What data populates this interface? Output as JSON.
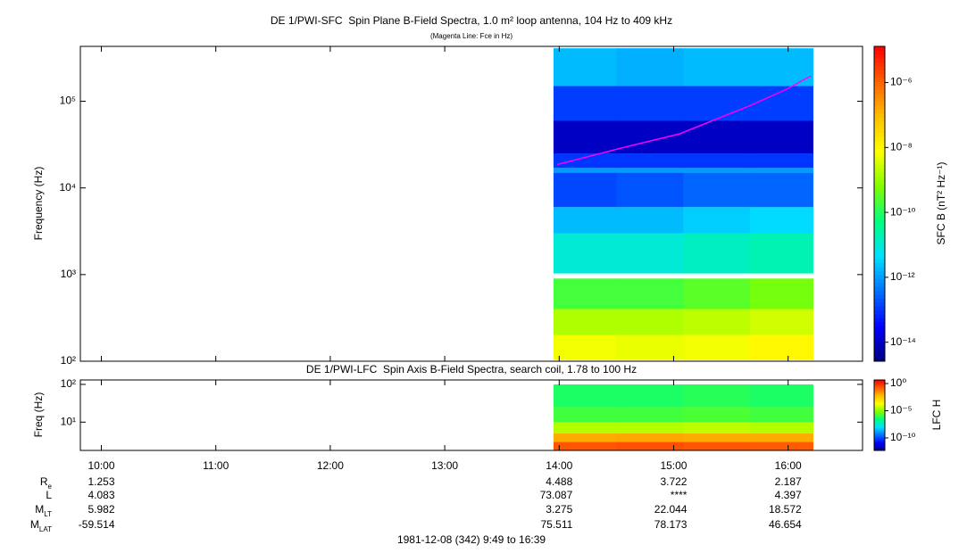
{
  "chart_data": {
    "type": "heatmap",
    "xlim": [
      589,
      999
    ],
    "xticks": [
      {
        "value": 600,
        "label": "10:00"
      },
      {
        "value": 660,
        "label": "11:00"
      },
      {
        "value": 720,
        "label": "12:00"
      },
      {
        "value": 780,
        "label": "13:00"
      },
      {
        "value": 840,
        "label": "14:00"
      },
      {
        "value": 900,
        "label": "15:00"
      },
      {
        "value": 960,
        "label": "16:00"
      }
    ],
    "panels": [
      {
        "title": "DE 1/PWI-SFC  Spin Plane B-Field Spectra, 1.0 m² loop antenna, 104 Hz to 409 kHz",
        "subtitle": "(Magenta Line: Fce in Hz)",
        "ylabel": "Frequency (Hz)",
        "log": true,
        "ylim": [
          100,
          430000
        ],
        "yticks": [
          {
            "value": 100,
            "label": "10²"
          },
          {
            "value": 1000,
            "label": "10³"
          },
          {
            "value": 10000,
            "label": "10⁴"
          },
          {
            "value": 100000,
            "label": "10⁵"
          }
        ],
        "x_edges": [
          837,
          870,
          905,
          940,
          973
        ],
        "y_edges": [
          104,
          200,
          400,
          900,
          1030,
          3000,
          6000,
          15000,
          17000,
          25000,
          60000,
          150000,
          409000
        ],
        "z": [
          [
            6e-09,
            5e-09,
            6e-09,
            1e-08
          ],
          [
            1.6e-09,
            1.6e-09,
            2e-09,
            3e-09
          ],
          [
            2e-10,
            2e-10,
            3e-10,
            5e-10
          ],
          [
            null,
            null,
            null,
            null
          ],
          [
            1e-11,
            1e-11,
            1.5e-11,
            2e-11
          ],
          [
            2e-12,
            2e-12,
            3e-12,
            4e-12
          ],
          [
            1.5e-13,
            2e-13,
            3e-13,
            3e-13
          ],
          [
            1e-12,
            1e-12,
            1e-12,
            1e-12
          ],
          [
            1e-13,
            1e-13,
            1e-13,
            1e-13
          ],
          [
            1e-14,
            1e-14,
            1e-14,
            1e-14
          ],
          [
            1.2e-13,
            1.2e-13,
            1.2e-13,
            1.2e-13
          ],
          [
            2e-12,
            1.5e-12,
            2e-12,
            2e-12
          ]
        ],
        "colorbar": {
          "label": "SFC B (nT² Hz⁻¹)",
          "log": true,
          "lim": [
            2.6e-15,
            1.3e-05
          ],
          "ticks": [
            {
              "value": 1e-14,
              "label": "10⁻¹⁴"
            },
            {
              "value": 1e-12,
              "label": "10⁻¹²"
            },
            {
              "value": 1e-10,
              "label": "10⁻¹⁰"
            },
            {
              "value": 1e-08,
              "label": "10⁻⁸"
            },
            {
              "value": 1e-06,
              "label": "10⁻⁶"
            }
          ],
          "colors": [
            "#000080",
            "#0000ff",
            "#0070ff",
            "#00e0ff",
            "#00ff80",
            "#80ff00",
            "#ffff00",
            "#ffc000",
            "#ff6000",
            "#ff0000"
          ]
        },
        "line": {
          "color": "#ff00ff",
          "x": [
            839,
            874,
            903,
            940,
            959,
            972
          ],
          "values": [
            18600,
            29400,
            42000,
            89000,
            137000,
            196000
          ]
        }
      },
      {
        "title": "DE 1/PWI-LFC  Spin Axis B-Field Spectra, search coil, 1.78 to 100 Hz",
        "ylabel": "Freq (Hz)",
        "log": true,
        "ylim": [
          1.78,
          131
        ],
        "yticks": [
          {
            "value": 10,
            "label": "10¹"
          },
          {
            "value": 100,
            "label": "10²"
          }
        ],
        "x_edges": [
          837,
          870,
          905,
          940,
          973
        ],
        "y_edges": [
          1.78,
          3,
          5,
          10,
          25,
          100
        ],
        "z": [
          [
            0.23,
            0.3,
            0.23,
            0.2
          ],
          [
            0.012,
            0.015,
            0.012,
            0.012
          ],
          [
            3e-05,
            3e-05,
            4e-05,
            3e-05
          ],
          [
            1.6e-06,
            1.6e-06,
            2e-06,
            1.6e-06
          ],
          [
            6e-07,
            6e-07,
            8e-07,
            6e-07
          ]
        ],
        "colorbar": {
          "label": "LFC H",
          "log": true,
          "lim": [
            5e-13,
            4.6
          ],
          "ticks": [
            {
              "value": 1e-10,
              "label": "10⁻¹⁰"
            },
            {
              "value": 1e-05,
              "label": "10⁻⁵"
            },
            {
              "value": 1,
              "label": "10⁰"
            }
          ],
          "colors": [
            "#000080",
            "#0000ff",
            "#0070ff",
            "#00e0ff",
            "#00ff80",
            "#80ff00",
            "#ffff00",
            "#ffc000",
            "#ff6000",
            "#ff0000"
          ]
        }
      }
    ]
  },
  "ephemeris": {
    "rows": [
      {
        "label": "R",
        "sub": "e",
        "values": [
          1.253,
          null,
          null,
          null,
          4.488,
          3.722,
          2.187
        ]
      },
      {
        "label": "L",
        "values": [
          4.083,
          null,
          null,
          null,
          73.087,
          "****",
          4.397
        ]
      },
      {
        "label": "M",
        "sub": "LT",
        "values": [
          5.982,
          null,
          null,
          null,
          3.275,
          22.044,
          18.572
        ]
      },
      {
        "label": "M",
        "sub": "LAT",
        "values": [
          -59.514,
          null,
          null,
          null,
          75.511,
          78.173,
          46.654
        ]
      }
    ]
  },
  "footer": "1981-12-08 (342) 9:49 to 16:39"
}
